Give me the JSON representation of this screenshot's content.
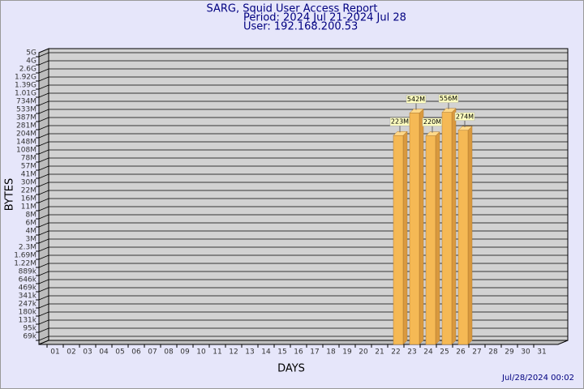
{
  "chart_data": {
    "type": "bar3d",
    "title": "SARG, Squid User Access Report",
    "period": "Period: 2024 Jul 21-2024 Jul 28",
    "user": "User: 192.168.200.53",
    "x_label": "DAYS",
    "y_label": "BYTES",
    "footer": "Jul/28/2024 00:02",
    "color": "#f5b955",
    "categories": [
      "01",
      "02",
      "03",
      "04",
      "05",
      "06",
      "07",
      "08",
      "09",
      "10",
      "11",
      "12",
      "13",
      "14",
      "15",
      "16",
      "17",
      "18",
      "19",
      "20",
      "21",
      "22",
      "23",
      "24",
      "25",
      "26",
      "27",
      "28",
      "29",
      "30",
      "31"
    ],
    "values": [
      null,
      null,
      null,
      null,
      null,
      null,
      null,
      null,
      null,
      null,
      null,
      null,
      null,
      null,
      null,
      null,
      null,
      null,
      null,
      null,
      null,
      223000000,
      542000000,
      220000000,
      556000000,
      274000000,
      null,
      null,
      null,
      null,
      null
    ],
    "value_labels": [
      null,
      null,
      null,
      null,
      null,
      null,
      null,
      null,
      null,
      null,
      null,
      null,
      null,
      null,
      null,
      null,
      null,
      null,
      null,
      null,
      null,
      "223M",
      "542M",
      "220M",
      "556M",
      "274M",
      null,
      null,
      null,
      null,
      null
    ],
    "ylim": [
      69000,
      5000000000
    ],
    "yticks": [
      {
        "value": 5000000000,
        "label": "5G"
      },
      {
        "value": 4000000000,
        "label": "4G"
      },
      {
        "value": 2600000000,
        "label": "2.6G"
      },
      {
        "value": 1920000000,
        "label": "1.92G"
      },
      {
        "value": 1390000000,
        "label": "1.39G"
      },
      {
        "value": 1010000000,
        "label": "1.01G"
      },
      {
        "value": 734000000,
        "label": "734M"
      },
      {
        "value": 533000000,
        "label": "533M"
      },
      {
        "value": 387000000,
        "label": "387M"
      },
      {
        "value": 281000000,
        "label": "281M"
      },
      {
        "value": 204000000,
        "label": "204M"
      },
      {
        "value": 148000000,
        "label": "148M"
      },
      {
        "value": 108000000,
        "label": "108M"
      },
      {
        "value": 78000000,
        "label": "78M"
      },
      {
        "value": 57000000,
        "label": "57M"
      },
      {
        "value": 41000000,
        "label": "41M"
      },
      {
        "value": 30000000,
        "label": "30M"
      },
      {
        "value": 22000000,
        "label": "22M"
      },
      {
        "value": 16000000,
        "label": "16M"
      },
      {
        "value": 11000000,
        "label": "11M"
      },
      {
        "value": 8000000,
        "label": "8M"
      },
      {
        "value": 6000000,
        "label": "6M"
      },
      {
        "value": 4000000,
        "label": "4M"
      },
      {
        "value": 3000000,
        "label": "3M"
      },
      {
        "value": 2300000,
        "label": "2.3M"
      },
      {
        "value": 1690000,
        "label": "1.69M"
      },
      {
        "value": 1220000,
        "label": "1.22M"
      },
      {
        "value": 889000,
        "label": "889k"
      },
      {
        "value": 646000,
        "label": "646k"
      },
      {
        "value": 469000,
        "label": "469k"
      },
      {
        "value": 341000,
        "label": "341k"
      },
      {
        "value": 247000,
        "label": "247k"
      },
      {
        "value": 180000,
        "label": "180k"
      },
      {
        "value": 131000,
        "label": "131k"
      },
      {
        "value": 95000,
        "label": "95k"
      },
      {
        "value": 69000,
        "label": "69k"
      }
    ],
    "grid": true
  }
}
